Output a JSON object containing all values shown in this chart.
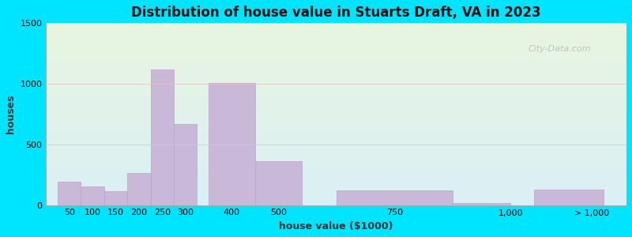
{
  "title": "Distribution of house value in Stuarts Draft, VA in 2023",
  "xlabel": "house value ($1000)",
  "ylabel": "houses",
  "bar_color": "#c9b8d8",
  "bar_edgecolor": "#b8a5cc",
  "background_outer": "#00e5ff",
  "background_inner_top": "#e8f5e0",
  "background_inner_bottom": "#daf0f5",
  "ylim": [
    0,
    1500
  ],
  "yticks": [
    0,
    500,
    1000,
    1500
  ],
  "xtick_labels": [
    "50",
    "100",
    "150",
    "200",
    "250",
    "300",
    "400",
    "500",
    "750",
    "1,000",
    "> 1,000"
  ],
  "bar_lefts": [
    25,
    75,
    125,
    175,
    225,
    275,
    350,
    450,
    625,
    875,
    1050
  ],
  "bar_widths": [
    50,
    50,
    50,
    50,
    50,
    50,
    100,
    100,
    250,
    125,
    150
  ],
  "bar_heights": [
    195,
    155,
    115,
    265,
    1120,
    670,
    1005,
    360,
    120,
    18,
    130
  ],
  "bar_xtick_positions": [
    50,
    100,
    150,
    200,
    250,
    300,
    400,
    500,
    750,
    1000,
    1175
  ],
  "xlim": [
    0,
    1250
  ],
  "watermark_text": "City-Data.com",
  "grid_color": "#e8c0c0",
  "title_fontsize": 12,
  "axis_label_fontsize": 9,
  "tick_fontsize": 8
}
